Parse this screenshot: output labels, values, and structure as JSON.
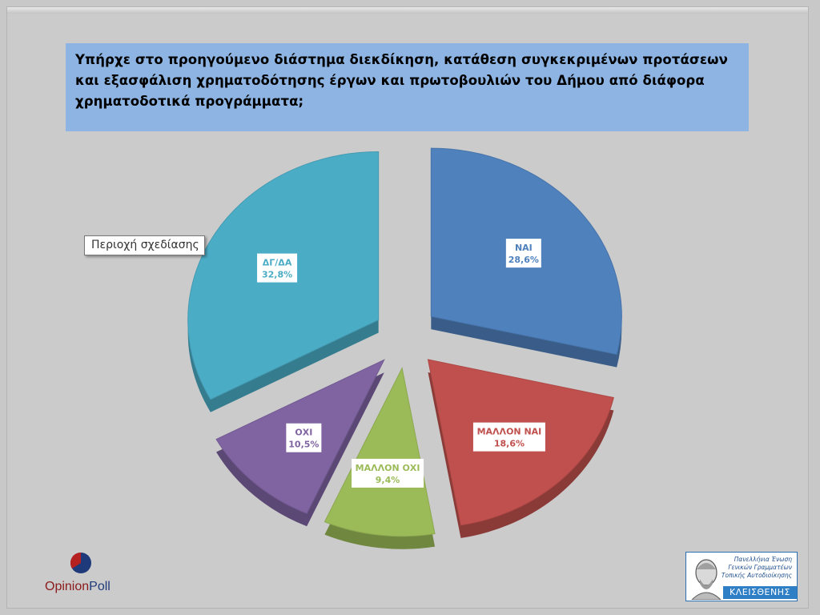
{
  "title": "Υπήρχε στο προηγούμενο διάστημα διεκδίκηση, κατάθεση συγκεκριμένων προτάσεων και εξασφάλιση χρηματοδότησης έργων και πρωτοβουλιών του Δήμου από διάφορα χρηματοδοτικά προγράμματα;",
  "tooltip": "Περιοχή σχεδίασης",
  "brand": {
    "opinion": "Opinion",
    "poll": "Poll",
    "colors": {
      "opinion": "#8b1a1a",
      "poll": "#1f3a7a"
    }
  },
  "logo": {
    "lines": [
      "Πανελλήνια Ένωση",
      "Γενικών Γραμματέων",
      "Τοπικής Αυτοδιοίκησης"
    ],
    "name": "ΚΛΕΙΣΘΕΝΗΣ"
  },
  "chart_data": {
    "type": "pie",
    "style": "exploded-3d",
    "slices": [
      {
        "label": "ΝΑΙ",
        "value": 28.6,
        "value_label": "28,6%",
        "color": "#4f81bd",
        "label_color": "#4f81bd"
      },
      {
        "label": "ΜΑΛΛΟΝ ΝΑΙ",
        "value": 18.6,
        "value_label": "18,6%",
        "color": "#c0504d",
        "label_color": "#c0504d"
      },
      {
        "label": "ΜΑΛΛΟΝ ΟΧΙ",
        "value": 9.4,
        "value_label": "9,4%",
        "color": "#9bbb59",
        "label_color": "#9bbb59"
      },
      {
        "label": "ΟΧΙ",
        "value": 10.5,
        "value_label": "10,5%",
        "color": "#8064a2",
        "label_color": "#8064a2"
      },
      {
        "label": "ΔΓ/ΔΑ",
        "value": 32.8,
        "value_label": "32,8%",
        "color": "#4bacc6",
        "label_color": "#4bacc6"
      }
    ]
  }
}
